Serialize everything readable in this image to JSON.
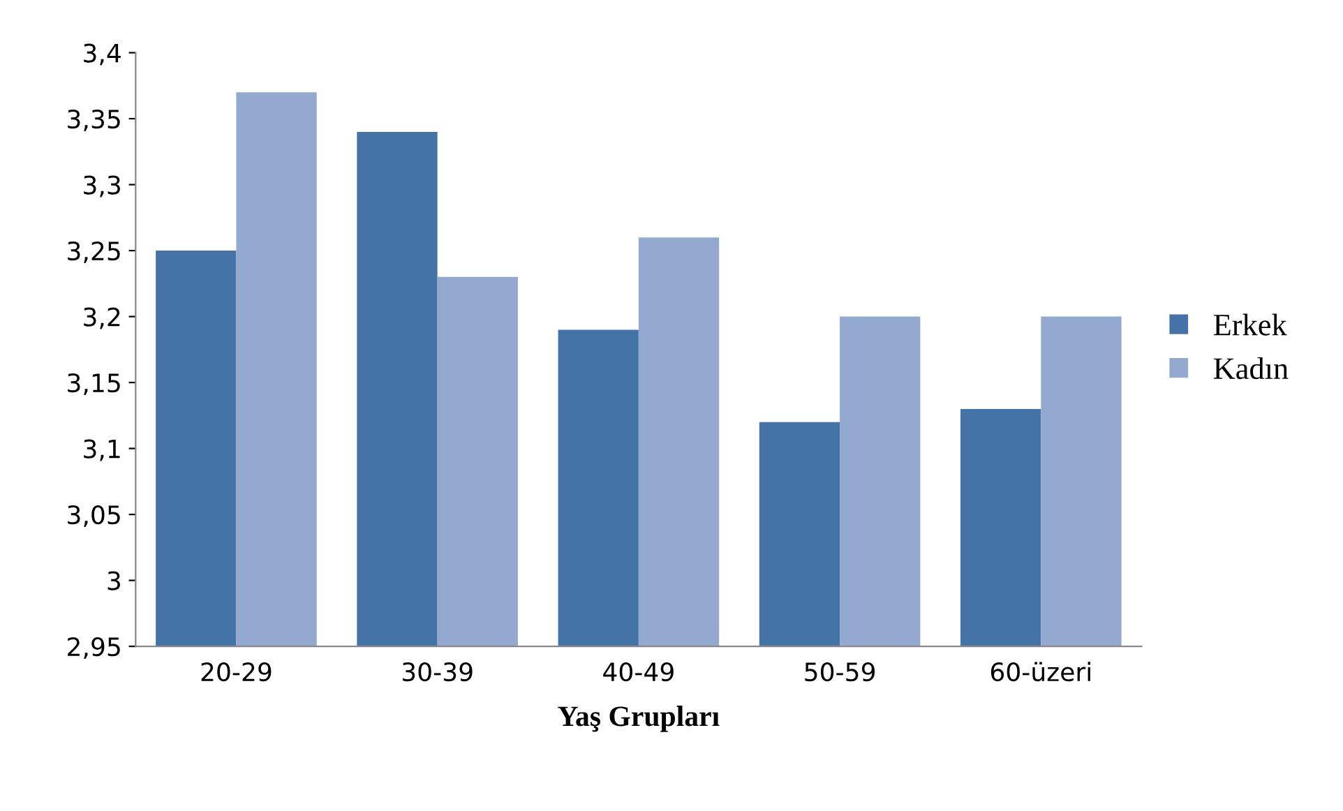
{
  "chart_data": {
    "type": "bar",
    "xlabel": "Yaş Grupları",
    "categories": [
      "20-29",
      "30-39",
      "40-49",
      "50-59",
      "60-üzeri"
    ],
    "series": [
      {
        "name": "Erkek",
        "color": "#4572a7",
        "values": [
          3.25,
          3.34,
          3.19,
          3.12,
          3.13
        ]
      },
      {
        "name": "Kadın",
        "color": "#93a9cf",
        "values": [
          3.37,
          3.23,
          3.26,
          3.2,
          3.2
        ]
      }
    ],
    "ylim": [
      2.95,
      3.4
    ],
    "yticks": [
      {
        "value": 2.95,
        "label": "2,95"
      },
      {
        "value": 3,
        "label": "3"
      },
      {
        "value": 3.05,
        "label": "3,05"
      },
      {
        "value": 3.1,
        "label": "3,1"
      },
      {
        "value": 3.15,
        "label": "3,15"
      },
      {
        "value": 3.2,
        "label": "3,2"
      },
      {
        "value": 3.25,
        "label": "3,25"
      },
      {
        "value": 3.3,
        "label": "3,3"
      },
      {
        "value": 3.35,
        "label": "3,35"
      },
      {
        "value": 3.4,
        "label": "3,4"
      }
    ],
    "grid": false,
    "legend": "right"
  }
}
